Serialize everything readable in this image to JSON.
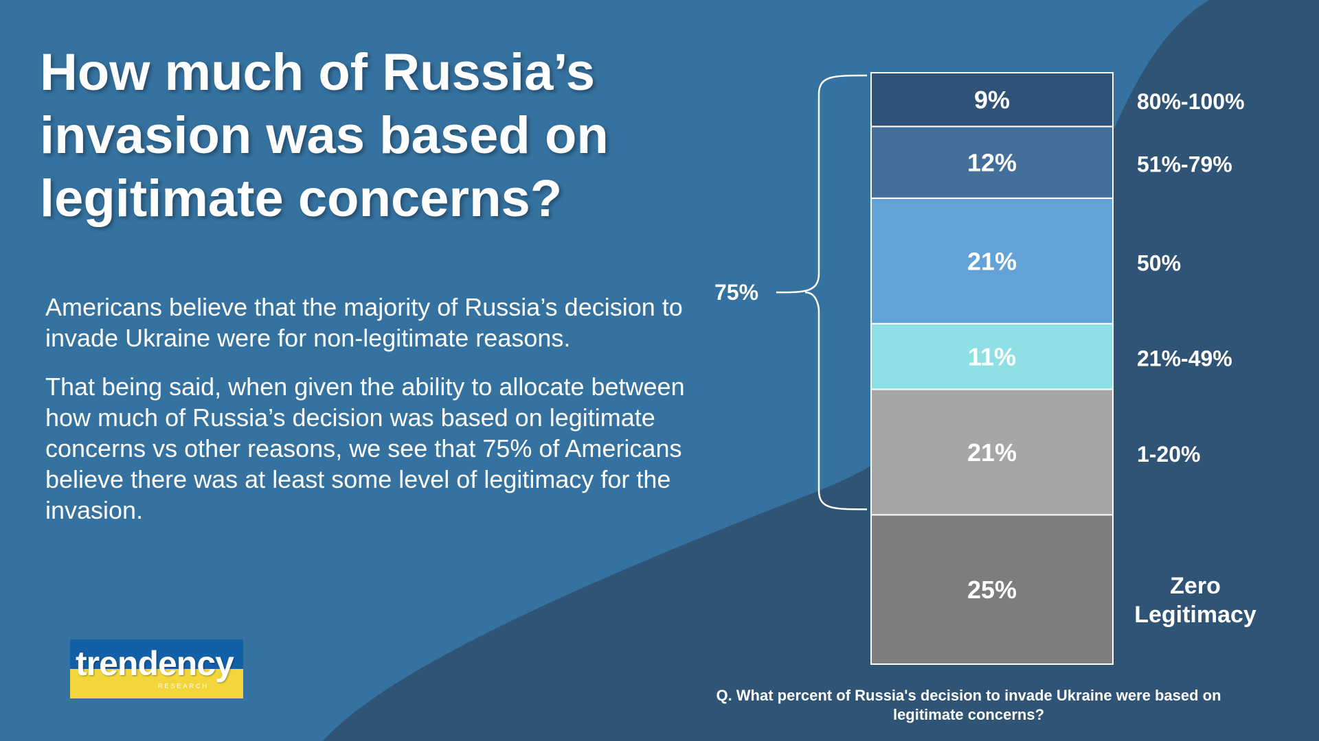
{
  "slide": {
    "title": "How much of Russia’s invasion was based on legitimate concerns?",
    "paragraphs": [
      "Americans believe that the majority of Russia’s decision to invade Ukraine were for non-legitimate reasons.",
      "That being said, when given the ability to allocate between how much of Russia’s decision was based on legitimate concerns vs other reasons, we see that 75% of Americans believe there was at least some level of legitimacy for the invasion."
    ],
    "question": "Q. What percent of Russia's decision to invade Ukraine were based on legitimate concerns?"
  },
  "logo": {
    "word": "trendency",
    "sub": "RESEARCH"
  },
  "colors": {
    "background": "#3572a0",
    "background_dark": "#2f5476"
  },
  "chart_data": {
    "type": "bar",
    "stacked": true,
    "title": "",
    "categories": [
      "Zero Legitimacy",
      "1-20%",
      "21%-49%",
      "50%",
      "51%-79%",
      "80%-100%"
    ],
    "values": [
      25,
      21,
      11,
      21,
      12,
      9
    ],
    "value_labels": [
      "25%",
      "21%",
      "11%",
      "21%",
      "12%",
      "9%"
    ],
    "colors": [
      "#7d7d7d",
      "#a6a6a6",
      "#8fe0e4",
      "#63a2d6",
      "#436f9a",
      "#2f5378"
    ],
    "bracket": {
      "label": "75%",
      "covers": [
        "1-20%",
        "21%-49%",
        "50%",
        "51%-79%",
        "80%-100%"
      ]
    },
    "total": 99
  }
}
